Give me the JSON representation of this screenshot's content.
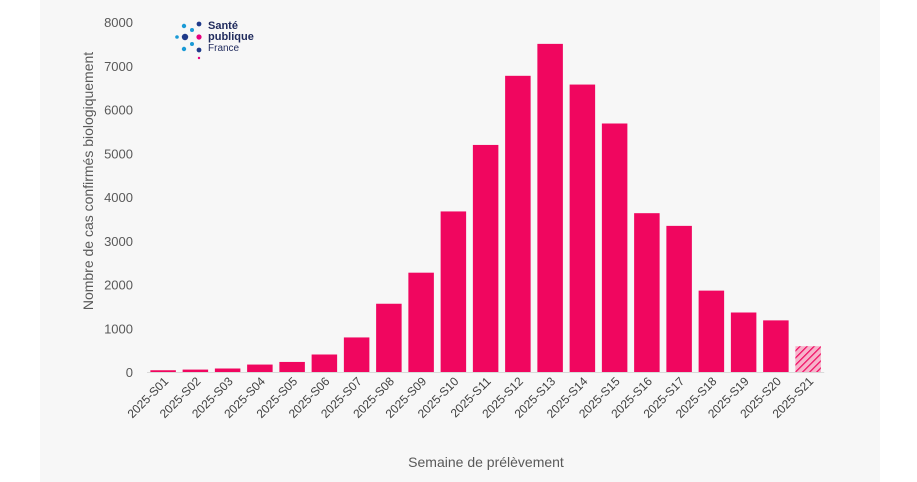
{
  "logo": {
    "line1": "Santé",
    "line2": "publique",
    "line3": "France"
  },
  "chart_data": {
    "type": "bar",
    "title": "",
    "xlabel": "Semaine de prélèvement",
    "ylabel": "Nombre de cas confirmés biologiquement",
    "ylim": [
      0,
      8000
    ],
    "yticks": [
      0,
      1000,
      2000,
      3000,
      4000,
      5000,
      6000,
      7000,
      8000
    ],
    "grid": false,
    "categories": [
      "2025-S01",
      "2025-S02",
      "2025-S03",
      "2025-S04",
      "2025-S05",
      "2025-S06",
      "2025-S07",
      "2025-S08",
      "2025-S09",
      "2025-S10",
      "2025-S11",
      "2025-S12",
      "2025-S13",
      "2025-S14",
      "2025-S15",
      "2025-S16",
      "2025-S17",
      "2025-S18",
      "2025-S19",
      "2025-S20",
      "2025-S21"
    ],
    "values": [
      40,
      55,
      80,
      170,
      230,
      400,
      790,
      1560,
      2270,
      3670,
      5190,
      6770,
      7500,
      6570,
      5680,
      3630,
      3340,
      1860,
      1360,
      1180,
      590
    ],
    "bar_color": "#f0065f",
    "hatched_last": true
  }
}
